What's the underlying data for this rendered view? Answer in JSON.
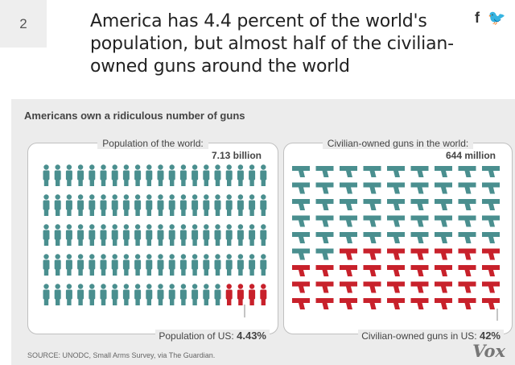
{
  "item_number": "2",
  "headline": "America has 4.4 percent of the world's population, but almost half of the civilian-owned guns around the world",
  "social": {
    "facebook": "f",
    "twitter": "🐦"
  },
  "infographic": {
    "title": "Americans own a ridiculous number of guns",
    "population": {
      "label": "Population of the world:",
      "value": "7.13 billion",
      "us_label": "Population of US:",
      "us_value": "4.43%",
      "us_share": 0.0443
    },
    "guns": {
      "label": "Civilian-owned guns in the world:",
      "value": "644 million",
      "us_label": "Civilian-owned guns in US:",
      "us_value": "42%",
      "us_share": 0.42
    },
    "source": "SOURCE: UNODC, Small Arms Survey, via The Guardian.",
    "brand": "Vox"
  },
  "colors": {
    "world": "#4a8f8f",
    "us": "#c8212b"
  }
}
